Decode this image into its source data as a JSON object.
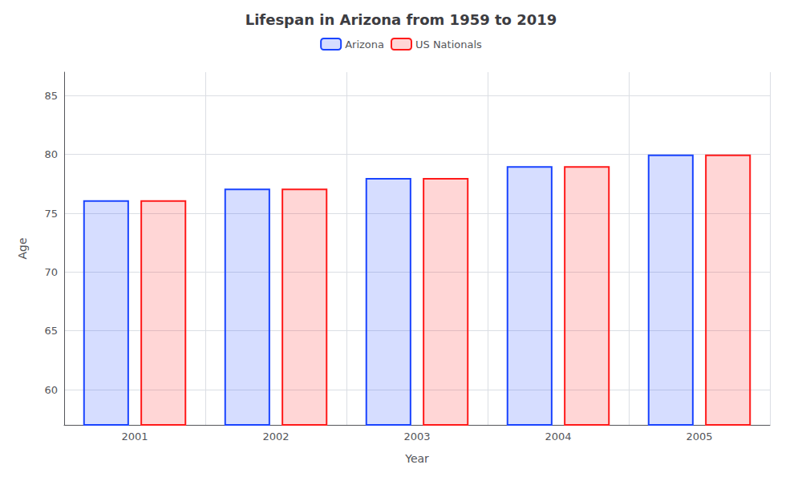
{
  "chart_data": {
    "type": "bar",
    "title": "Lifespan in Arizona from 1959 to 2019",
    "xlabel": "Year",
    "ylabel": "Age",
    "categories": [
      "2001",
      "2002",
      "2003",
      "2004",
      "2005"
    ],
    "series": [
      {
        "name": "Arizona",
        "color": "#1a44ff",
        "values": [
          76.1,
          77.1,
          78.0,
          79.0,
          80.0
        ]
      },
      {
        "name": "US Nationals",
        "color": "#ff1a1a",
        "values": [
          76.1,
          77.1,
          78.0,
          79.0,
          80.0
        ]
      }
    ],
    "ylim": [
      57,
      87
    ],
    "yticks": [
      60,
      65,
      70,
      75,
      80,
      85
    ],
    "grid": true,
    "legend": "top"
  }
}
